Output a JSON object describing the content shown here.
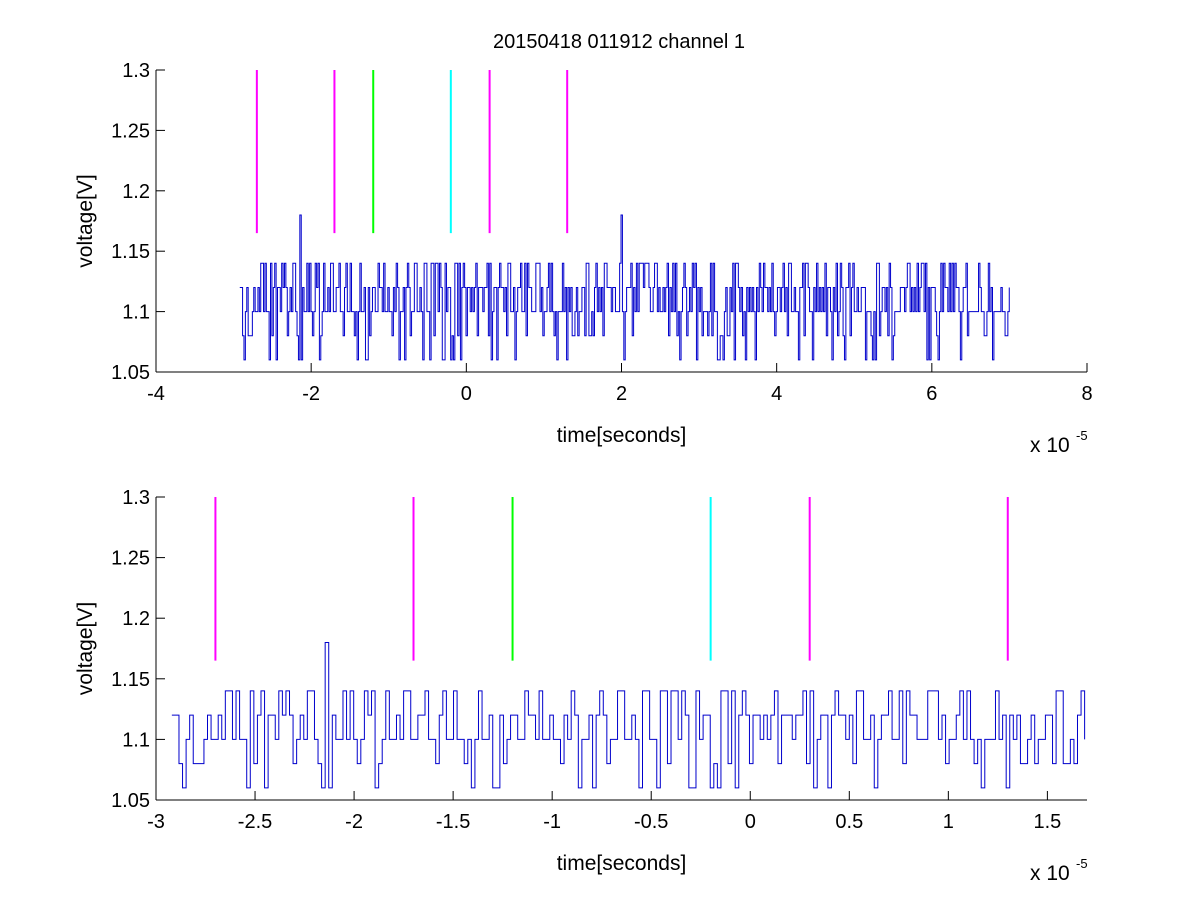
{
  "title": "20150418 011912 channel 1",
  "chart_data": [
    {
      "type": "line",
      "title": "20150418 011912 channel 1",
      "xlabel": "time[seconds]",
      "ylabel": "voltage[V]",
      "x_multiplier_label": "x 10",
      "x_multiplier_exponent": "-5",
      "xlim": [
        -4,
        8
      ],
      "ylim": [
        1.05,
        1.3
      ],
      "xticks": [
        -4,
        -2,
        0,
        2,
        4,
        6,
        8
      ],
      "xtick_labels": [
        "-4",
        "-2",
        "0",
        "2",
        "4",
        "6",
        "8"
      ],
      "yticks": [
        1.05,
        1.1,
        1.15,
        1.2,
        1.25,
        1.3
      ],
      "ytick_labels": [
        "1.05",
        "1.1",
        "1.15",
        "1.2",
        "1.25",
        "1.3"
      ],
      "grid": false,
      "signal": {
        "color": "#0000cc",
        "x_range": [
          -2.92,
          7.0
        ],
        "baseline": 1.1,
        "levels": [
          1.06,
          1.08,
          1.1,
          1.12,
          1.14
        ],
        "spikes": [
          {
            "x": -2.15,
            "y": 1.18
          },
          {
            "x": 2.0,
            "y": 1.18
          }
        ]
      },
      "markers": [
        {
          "x": -2.7,
          "y_from": 1.165,
          "y_to": 1.3,
          "color": "#ff00ff"
        },
        {
          "x": -1.7,
          "y_from": 1.165,
          "y_to": 1.3,
          "color": "#ff00ff"
        },
        {
          "x": -1.2,
          "y_from": 1.165,
          "y_to": 1.3,
          "color": "#00ff00"
        },
        {
          "x": -0.2,
          "y_from": 1.165,
          "y_to": 1.3,
          "color": "#00ffff"
        },
        {
          "x": 0.3,
          "y_from": 1.165,
          "y_to": 1.3,
          "color": "#ff00ff"
        },
        {
          "x": 1.3,
          "y_from": 1.165,
          "y_to": 1.3,
          "color": "#ff00ff"
        }
      ]
    },
    {
      "type": "line",
      "title": "",
      "xlabel": "time[seconds]",
      "ylabel": "voltage[V]",
      "x_multiplier_label": "x 10",
      "x_multiplier_exponent": "-5",
      "xlim": [
        -3.0,
        1.7
      ],
      "ylim": [
        1.05,
        1.3
      ],
      "xticks": [
        -3,
        -2.5,
        -2,
        -1.5,
        -1,
        -0.5,
        0,
        0.5,
        1,
        1.5
      ],
      "xtick_labels": [
        "-3",
        "-2.5",
        "-2",
        "-1.5",
        "-1",
        "-0.5",
        "0",
        "0.5",
        "1",
        "1.5"
      ],
      "yticks": [
        1.05,
        1.1,
        1.15,
        1.2,
        1.25,
        1.3
      ],
      "ytick_labels": [
        "1.05",
        "1.1",
        "1.15",
        "1.2",
        "1.25",
        "1.3"
      ],
      "grid": false,
      "signal": {
        "color": "#0000cc",
        "x_range": [
          -2.92,
          1.7
        ],
        "baseline": 1.1,
        "levels": [
          1.06,
          1.08,
          1.1,
          1.12,
          1.14
        ],
        "spikes": [
          {
            "x": -2.15,
            "y": 1.18
          }
        ]
      },
      "markers": [
        {
          "x": -2.7,
          "y_from": 1.165,
          "y_to": 1.3,
          "color": "#ff00ff"
        },
        {
          "x": -1.7,
          "y_from": 1.165,
          "y_to": 1.3,
          "color": "#ff00ff"
        },
        {
          "x": -1.2,
          "y_from": 1.165,
          "y_to": 1.3,
          "color": "#00ff00"
        },
        {
          "x": -0.2,
          "y_from": 1.165,
          "y_to": 1.3,
          "color": "#00ffff"
        },
        {
          "x": 0.3,
          "y_from": 1.165,
          "y_to": 1.3,
          "color": "#ff00ff"
        },
        {
          "x": 1.3,
          "y_from": 1.165,
          "y_to": 1.3,
          "color": "#ff00ff"
        }
      ]
    }
  ]
}
